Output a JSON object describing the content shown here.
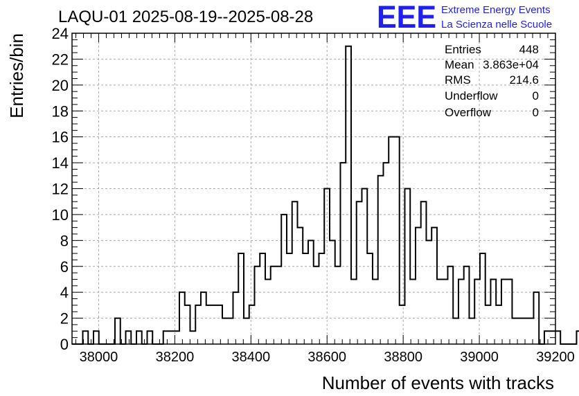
{
  "chart_data": {
    "type": "histogram",
    "title": "LAQU-01 2025-08-19--2025-08-28",
    "xlabel": "Number of events with tracks",
    "ylabel": "Entries/bin",
    "xlim": [
      37930,
      39200
    ],
    "ylim": [
      0,
      24
    ],
    "x_ticks": [
      38000,
      38200,
      38400,
      38600,
      38800,
      39000,
      39200
    ],
    "y_ticks": [
      0,
      2,
      4,
      6,
      8,
      10,
      12,
      14,
      16,
      18,
      20,
      22,
      24
    ],
    "grid": true,
    "bin_start": 37930,
    "bin_width": 14.1,
    "counts": [
      0,
      0,
      1,
      0,
      1,
      0,
      0,
      0,
      2,
      0,
      1,
      0,
      1,
      0,
      1,
      0,
      0,
      1,
      1,
      1,
      4,
      3,
      1,
      3,
      4,
      3,
      3,
      3,
      2,
      2,
      4,
      7,
      2,
      3,
      6,
      7,
      5,
      6,
      6,
      10,
      7,
      11,
      9,
      7,
      8,
      6,
      7,
      12,
      8,
      6,
      14,
      23,
      5,
      11,
      12,
      7,
      5,
      13,
      14,
      16,
      16,
      3,
      12,
      5,
      9,
      11,
      8,
      9,
      5,
      5,
      6,
      2,
      5,
      6,
      2,
      5,
      7,
      3,
      5,
      3,
      5,
      5,
      2,
      2,
      2,
      2,
      4,
      0,
      1,
      1,
      1,
      0,
      0,
      0,
      1,
      0
    ],
    "stats": {
      "entries_label": "Entries",
      "entries_value": "448",
      "mean_label": "Mean",
      "mean_value": "3.863e+04",
      "rms_label": "RMS",
      "rms_value": "214.6",
      "underflow_label": "Underflow",
      "underflow_value": "0",
      "overflow_label": "Overflow",
      "overflow_value": "0"
    }
  },
  "logo": {
    "mark": "EEE",
    "line1": "Extreme Energy Events",
    "line2": "La Scienza nelle Scuole",
    "color": "#1f1fef"
  },
  "colors": {
    "grid": "#a8a8a8",
    "line": "#000000",
    "background": "#ffffff"
  }
}
